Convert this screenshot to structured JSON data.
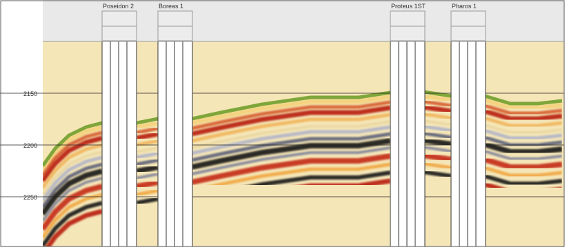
{
  "wells": [
    {
      "name": "Poseidon 2"
    },
    {
      "name": "Boreas 1"
    },
    {
      "name": "Proteus 1ST"
    },
    {
      "name": "Pharos 1"
    }
  ],
  "depth_axis": {
    "ticks": [
      2150,
      2200,
      2250
    ]
  }
}
